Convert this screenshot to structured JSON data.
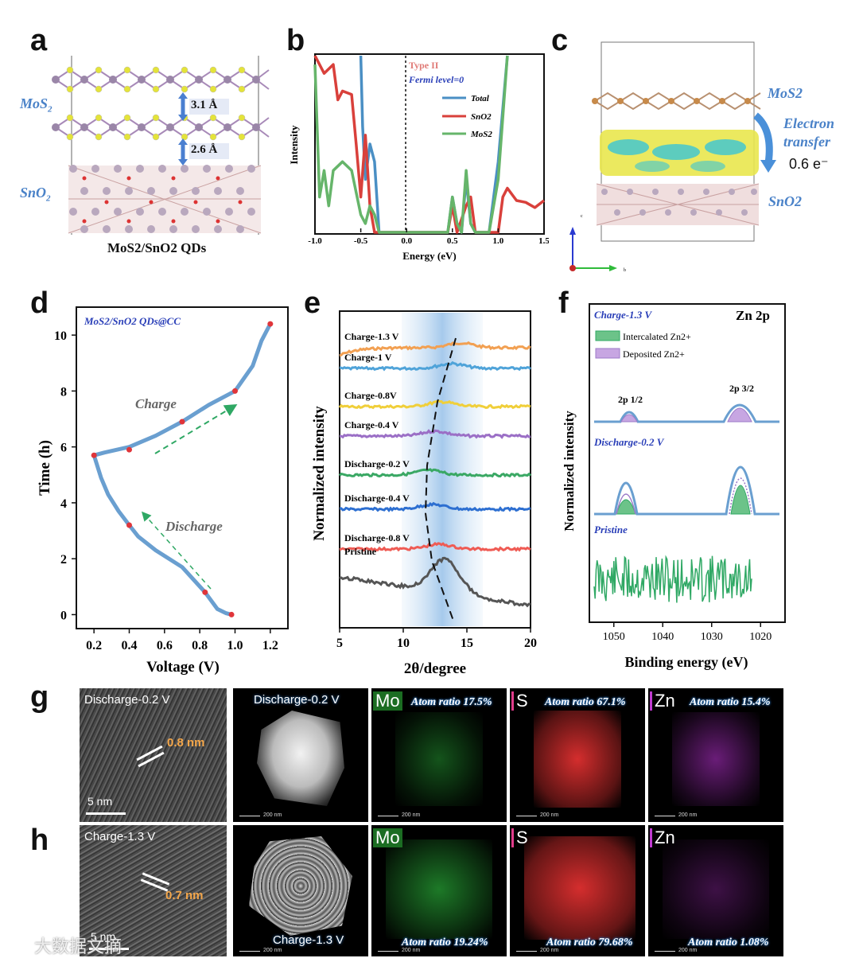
{
  "panels": {
    "a": "a",
    "b": "b",
    "c": "c",
    "d": "d",
    "e": "e",
    "f": "f",
    "g": "g",
    "h": "h"
  },
  "panel_a": {
    "top_label": "MoS",
    "top_sub": "2",
    "bottom_label": "SnO",
    "bottom_sub": "2",
    "spacing1": "3.1 Å",
    "spacing2": "2.6 Å",
    "caption": "MoS2/SnO2 QDs"
  },
  "panel_c": {
    "label_top": "MoS2",
    "label_bottom": "SnO2",
    "transfer": "Electron transfer",
    "charge": "0.6 e⁻",
    "axis_c": "c",
    "axis_b": "b"
  },
  "chart_data": [
    {
      "panel": "b",
      "type": "line",
      "xlabel": "Energy (eV)",
      "ylabel": "Intensity",
      "xlim": [
        -1.0,
        1.5
      ],
      "x_ticks": [
        "-1.0",
        "-0.5",
        "0.0",
        "0.5",
        "1.0",
        "1.5"
      ],
      "annotations": [
        "Type II",
        "Fermi level=0"
      ],
      "legend": [
        "Total",
        "SnO2",
        "MoS2"
      ],
      "series": [
        {
          "name": "Total",
          "color": "#4a8fc4",
          "x": [
            -0.5,
            -0.48,
            -0.45,
            -0.4,
            -0.35,
            -0.3,
            0.45,
            0.5,
            0.55,
            0.6,
            0.65,
            0.7,
            0.75,
            0.8,
            0.9,
            1.0,
            1.1
          ],
          "y": [
            1.0,
            0.6,
            0.3,
            0.5,
            0.4,
            0.0,
            0.0,
            0.2,
            0.05,
            0.0,
            0.3,
            0.05,
            0.0,
            0.0,
            0.0,
            0.4,
            1.0
          ]
        },
        {
          "name": "SnO2",
          "color": "#d9403b",
          "x": [
            -1.0,
            -0.9,
            -0.8,
            -0.75,
            -0.7,
            -0.6,
            -0.55,
            -0.5,
            -0.45,
            -0.4,
            -0.35,
            -0.3,
            0.45,
            0.5,
            0.55,
            0.65,
            0.7,
            0.75,
            1.0,
            1.05,
            1.1,
            1.2,
            1.3,
            1.4,
            1.5
          ],
          "y": [
            1.0,
            0.9,
            0.95,
            0.75,
            0.8,
            0.78,
            0.5,
            0.2,
            0.55,
            0.15,
            0.0,
            0.0,
            0.0,
            0.15,
            0.0,
            0.15,
            0.2,
            0.0,
            0.0,
            0.2,
            0.25,
            0.18,
            0.17,
            0.14,
            0.18
          ]
        },
        {
          "name": "MoS2",
          "color": "#66b56a",
          "x": [
            -1.0,
            -0.95,
            -0.9,
            -0.85,
            -0.8,
            -0.7,
            -0.6,
            -0.5,
            -0.45,
            -0.4,
            -0.35,
            -0.3,
            -0.1,
            0.45,
            0.5,
            0.55,
            0.6,
            0.65,
            0.7,
            0.75,
            0.9,
            1.0,
            1.1
          ],
          "y": [
            0.95,
            0.2,
            0.35,
            0.15,
            0.35,
            0.4,
            0.35,
            0.1,
            0.05,
            0.15,
            0.1,
            0.0,
            0.0,
            0.0,
            0.2,
            0.05,
            0.0,
            0.35,
            0.05,
            0.0,
            0.0,
            0.3,
            1.0
          ]
        }
      ]
    },
    {
      "panel": "d",
      "type": "line",
      "title": "MoS2/SnO2 QDs@CC",
      "xlabel": "Voltage (V)",
      "ylabel": "Time (h)",
      "xlim": [
        0.1,
        1.3
      ],
      "ylim": [
        -0.5,
        11
      ],
      "x_ticks": [
        "0.2",
        "0.4",
        "0.6",
        "0.8",
        "1.0",
        "1.2"
      ],
      "y_ticks": [
        "0",
        "2",
        "4",
        "6",
        "8",
        "10"
      ],
      "annotations": [
        "Charge",
        "Discharge"
      ],
      "series": [
        {
          "name": "curve",
          "color": "#6a9fd0",
          "x": [
            0.98,
            0.95,
            0.9,
            0.83,
            0.7,
            0.55,
            0.45,
            0.4,
            0.34,
            0.28,
            0.24,
            0.2,
            0.26,
            0.4,
            0.55,
            0.7,
            0.85,
            1.0,
            1.1,
            1.15,
            1.2
          ],
          "y": [
            0.0,
            0.05,
            0.2,
            0.8,
            1.7,
            2.3,
            2.8,
            3.2,
            3.7,
            4.3,
            4.9,
            5.7,
            5.8,
            6.0,
            6.4,
            6.9,
            7.5,
            8.0,
            8.9,
            9.8,
            10.4
          ]
        }
      ],
      "markers": [
        [
          0.98,
          0.0
        ],
        [
          0.83,
          0.8
        ],
        [
          0.4,
          3.2
        ],
        [
          0.2,
          5.7
        ],
        [
          0.4,
          5.9
        ],
        [
          0.7,
          6.9
        ],
        [
          1.0,
          8.0
        ],
        [
          1.2,
          10.4
        ]
      ]
    },
    {
      "panel": "e",
      "type": "line",
      "xlabel": "2θ/degree",
      "ylabel": "Normalized intensity",
      "xlim": [
        5,
        20
      ],
      "x_ticks": [
        "5",
        "10",
        "15",
        "20"
      ],
      "series": [
        {
          "name": "Charge-1.3 V",
          "color": "#f2a052"
        },
        {
          "name": "Charge-1 V",
          "color": "#4fa3d9"
        },
        {
          "name": "Charge-0.8V",
          "color": "#f0cf3a"
        },
        {
          "name": "Charge-0.4 V",
          "color": "#9b6fc6"
        },
        {
          "name": "Discharge-0.2 V",
          "color": "#3aa864"
        },
        {
          "name": "Discharge-0.4 V",
          "color": "#2d6fd1"
        },
        {
          "name": "Discharge-0.8 V",
          "color": "#ef5b54"
        },
        {
          "name": "Pristine",
          "color": "#555555"
        }
      ]
    },
    {
      "panel": "f",
      "type": "line",
      "title": "Zn 2p",
      "xlabel": "Binding energy (eV)",
      "ylabel": "Normalized intensity",
      "xlim": [
        1055,
        1015
      ],
      "x_ticks": [
        "1050",
        "1040",
        "1030",
        "1020"
      ],
      "legend": [
        "Intercalated Zn2+",
        "Deposited Zn2+"
      ],
      "peaks": [
        "2p 1/2",
        "2p 3/2"
      ],
      "series": [
        {
          "name": "Charge-1.3 V",
          "color": "#6a9fd0"
        },
        {
          "name": "Discharge-0.2 V",
          "color": "#6a9fd0"
        },
        {
          "name": "Pristine",
          "color": "#2fa864"
        }
      ]
    }
  ],
  "panel_g": {
    "hrtem_label": "Discharge-0.2 V",
    "spacing": "0.8 nm",
    "scale": "5 nm",
    "haadf_label": "Discharge-0.2 V",
    "small_scale": "200 nm",
    "maps": [
      {
        "element": "Mo",
        "ratio": "Atom ratio 17.5%",
        "color": "#2dbb3d"
      },
      {
        "element": "S",
        "ratio": "Atom ratio 67.1%",
        "color": "#e03030"
      },
      {
        "element": "Zn",
        "ratio": "Atom ratio 15.4%",
        "color": "#b030c8"
      }
    ]
  },
  "panel_h": {
    "hrtem_label": "Charge-1.3 V",
    "spacing": "0.7 nm",
    "scale": "5 nm",
    "haadf_label": "Charge-1.3 V",
    "small_scale": "200 nm",
    "maps": [
      {
        "element": "Mo",
        "ratio": "Atom ratio 19.24%",
        "color": "#2dbb3d"
      },
      {
        "element": "S",
        "ratio": "Atom ratio 79.68%",
        "color": "#e03030"
      },
      {
        "element": "Zn",
        "ratio": "Atom ratio 1.08%",
        "color": "#b030c8"
      }
    ]
  },
  "watermark": "大数据文摘"
}
